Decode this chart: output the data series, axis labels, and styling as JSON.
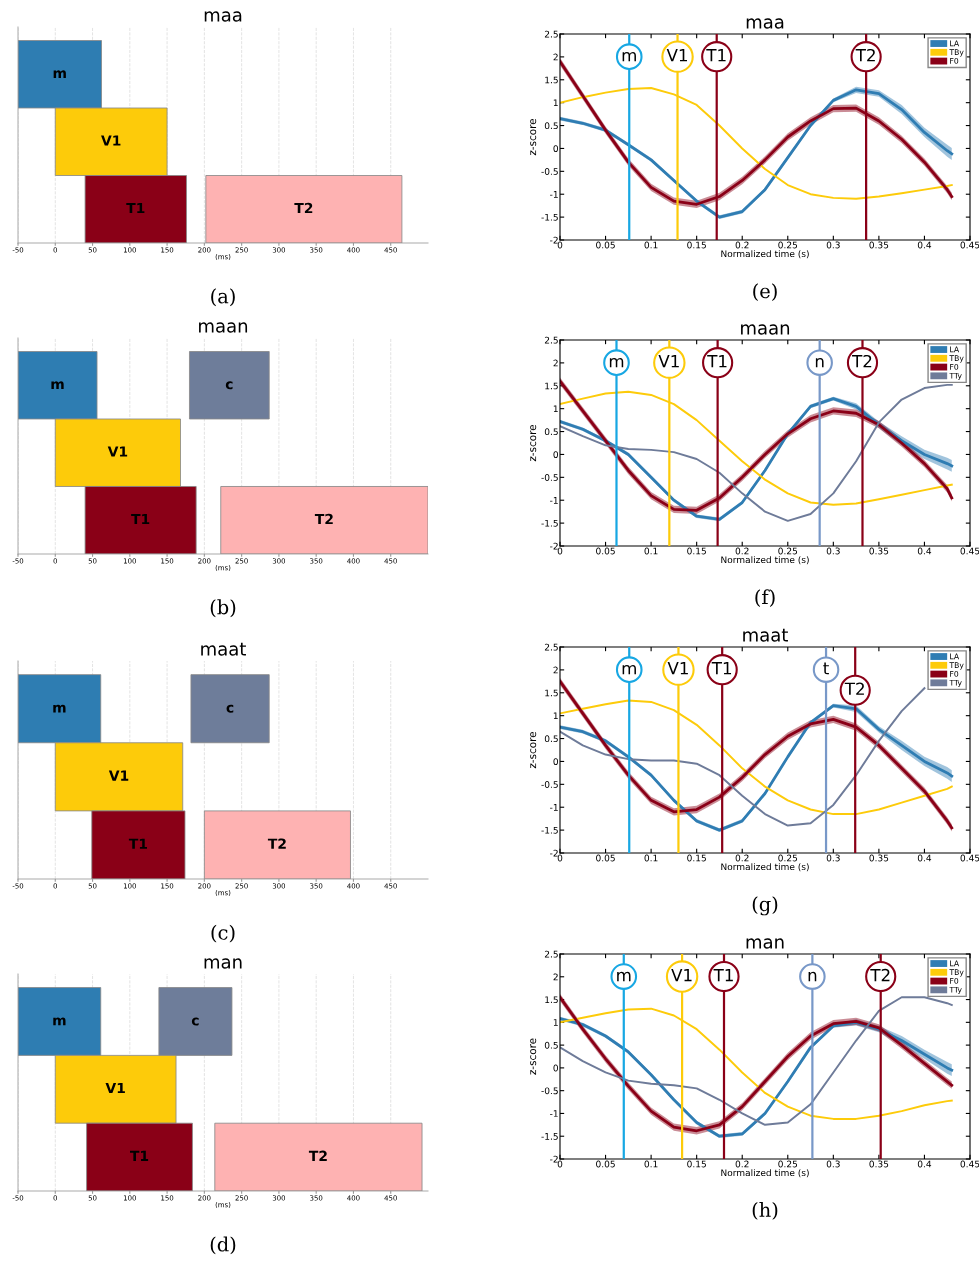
{
  "chart_data": [
    {
      "type": "bar",
      "orientation": "horizontal",
      "title": "maa",
      "xlabel": "(ms)",
      "categories": [
        null,
        null,
        null
      ],
      "xlim": [
        -50,
        500
      ],
      "xticks": [
        -50,
        0,
        50,
        100,
        150,
        200,
        250,
        300,
        350,
        400,
        450
      ],
      "grid": "x",
      "tick_labels": "x",
      "annotations": [
        "(a)"
      ],
      "series": [
        {
          "name": "m",
          "color": "#2e7db2",
          "values": [
            112,
            null,
            null
          ],
          "base": [
            -50,
            null,
            null
          ]
        },
        {
          "name": "V1",
          "color": "#fdcb0a",
          "values": [
            null,
            150,
            null
          ],
          "base": [
            null,
            0,
            null
          ]
        },
        {
          "name": "T1",
          "color": "#8a0017",
          "values": [
            null,
            null,
            136
          ],
          "base": [
            null,
            null,
            40
          ]
        },
        {
          "name": "T2",
          "color": "#feb2b2",
          "values": [
            null,
            null,
            263
          ],
          "base": [
            null,
            null,
            202
          ]
        }
      ]
    },
    {
      "type": "bar",
      "orientation": "horizontal",
      "title": "maan",
      "xlabel": "(ms)",
      "categories": [
        null,
        null,
        null
      ],
      "xlim": [
        -50,
        500
      ],
      "xticks": [
        -50,
        0,
        50,
        100,
        150,
        200,
        250,
        300,
        350,
        400,
        450
      ],
      "grid": "x",
      "tick_labels": "x",
      "annotations": [
        "(b)"
      ],
      "series": [
        {
          "name": "m",
          "color": "#2e7db2",
          "values": [
            106,
            null,
            null
          ],
          "base": [
            -50,
            null,
            null
          ]
        },
        {
          "name": "c",
          "color": "#6e7d9a",
          "values": [
            107,
            null,
            null
          ],
          "base": [
            180,
            null,
            null
          ]
        },
        {
          "name": "V1",
          "color": "#fdcb0a",
          "values": [
            null,
            168,
            null
          ],
          "base": [
            null,
            0,
            null
          ]
        },
        {
          "name": "T1",
          "color": "#8a0017",
          "values": [
            null,
            null,
            149
          ],
          "base": [
            null,
            null,
            40
          ]
        },
        {
          "name": "T2",
          "color": "#feb2b2",
          "values": [
            null,
            null,
            278
          ],
          "base": [
            null,
            null,
            222
          ]
        }
      ]
    },
    {
      "type": "bar",
      "orientation": "horizontal",
      "title": "maat",
      "xlabel": "(ms)",
      "categories": [
        null,
        null,
        null
      ],
      "xlim": [
        -50,
        500
      ],
      "xticks": [
        -50,
        0,
        50,
        100,
        150,
        200,
        250,
        300,
        350,
        400,
        450
      ],
      "grid": "x",
      "tick_labels": "x",
      "annotations": [
        "(c)"
      ],
      "series": [
        {
          "name": "m",
          "color": "#2e7db2",
          "values": [
            111,
            null,
            null
          ],
          "base": [
            -50,
            null,
            null
          ]
        },
        {
          "name": "c",
          "color": "#6e7d9a",
          "values": [
            105,
            null,
            null
          ],
          "base": [
            182,
            null,
            null
          ]
        },
        {
          "name": "V1",
          "color": "#fdcb0a",
          "values": [
            null,
            171,
            null
          ],
          "base": [
            null,
            0,
            null
          ]
        },
        {
          "name": "T1",
          "color": "#8a0017",
          "values": [
            null,
            null,
            125
          ],
          "base": [
            null,
            null,
            49
          ]
        },
        {
          "name": "T2",
          "color": "#feb2b2",
          "values": [
            null,
            null,
            196
          ],
          "base": [
            null,
            null,
            200
          ]
        }
      ]
    },
    {
      "type": "bar",
      "orientation": "horizontal",
      "title": "man",
      "xlabel": "(ms)",
      "categories": [
        null,
        null,
        null
      ],
      "xlim": [
        -50,
        500
      ],
      "xticks": [
        -50,
        0,
        50,
        100,
        150,
        200,
        250,
        300,
        350,
        400,
        450
      ],
      "grid": "x",
      "tick_labels": "x",
      "annotations": [
        "(d)"
      ],
      "series": [
        {
          "name": "m",
          "color": "#2e7db2",
          "values": [
            111,
            null,
            null
          ],
          "base": [
            -50,
            null,
            null
          ]
        },
        {
          "name": "c",
          "color": "#6e7d9a",
          "values": [
            98,
            null,
            null
          ],
          "base": [
            139,
            null,
            null
          ]
        },
        {
          "name": "V1",
          "color": "#fdcb0a",
          "values": [
            null,
            162,
            null
          ],
          "base": [
            null,
            0,
            null
          ]
        },
        {
          "name": "T1",
          "color": "#8a0017",
          "values": [
            null,
            null,
            142
          ],
          "base": [
            null,
            null,
            42
          ]
        },
        {
          "name": "T2",
          "color": "#feb2b2",
          "values": [
            null,
            null,
            278
          ],
          "base": [
            null,
            null,
            214
          ]
        }
      ]
    },
    {
      "type": "line",
      "title": "maa",
      "xlabel": "Normalized time (s)",
      "ylabel": "z-score",
      "x": [
        0,
        0.025,
        0.05,
        0.075,
        0.1,
        0.125,
        0.15,
        0.175,
        0.2,
        0.225,
        0.25,
        0.275,
        0.3,
        0.325,
        0.35,
        0.375,
        0.4,
        0.425,
        0.43
      ],
      "xlim": [
        0,
        0.45
      ],
      "ylim": [
        -2,
        2.5
      ],
      "xticks": [
        0,
        0.05,
        0.1,
        0.15,
        0.2,
        0.25,
        0.3,
        0.35,
        0.4,
        0.45
      ],
      "yticks": [
        -2,
        -1.5,
        -1,
        -0.5,
        0,
        0.5,
        1,
        1.5,
        2,
        2.5
      ],
      "legend": "top right",
      "annotations": [
        "(e)"
      ],
      "series": [
        {
          "name": "LA",
          "color": "#2f7db3",
          "values": [
            0.65,
            0.55,
            0.4,
            0.08,
            -0.25,
            -0.7,
            -1.15,
            -1.5,
            -1.38,
            -0.9,
            -0.2,
            0.5,
            1.05,
            1.28,
            1.2,
            0.85,
            0.35,
            -0.05,
            -0.12
          ],
          "lower": [
            0.61,
            0.51,
            0.36,
            0.04,
            -0.29,
            -0.74,
            -1.19,
            -1.54,
            -1.42,
            -0.94,
            -0.24,
            0.46,
            1.01,
            1.21,
            1.13,
            0.75,
            0.25,
            -0.18,
            -0.25
          ],
          "upper": [
            0.69,
            0.59,
            0.44,
            0.12,
            -0.21,
            -0.66,
            -1.11,
            -1.46,
            -1.34,
            -0.86,
            -0.16,
            0.54,
            1.09,
            1.35,
            1.27,
            0.95,
            0.45,
            0.08,
            0.01
          ]
        },
        {
          "name": "TBy",
          "color": "#fdcb0a",
          "values": [
            1.0,
            1.12,
            1.22,
            1.3,
            1.32,
            1.18,
            0.95,
            0.5,
            0.0,
            -0.45,
            -0.8,
            -1.0,
            -1.08,
            -1.1,
            -1.05,
            -0.98,
            -0.9,
            -0.82,
            -0.8
          ]
        },
        {
          "name": "F0",
          "color": "#8a0017",
          "values": [
            1.9,
            1.15,
            0.4,
            -0.3,
            -0.85,
            -1.15,
            -1.22,
            -1.05,
            -0.7,
            -0.25,
            0.25,
            0.6,
            0.87,
            0.88,
            0.6,
            0.2,
            -0.3,
            -0.9,
            -1.05
          ],
          "lower": [
            1.82,
            1.07,
            0.32,
            -0.38,
            -0.93,
            -1.23,
            -1.3,
            -1.13,
            -0.78,
            -0.33,
            0.17,
            0.52,
            0.79,
            0.8,
            0.52,
            0.12,
            -0.38,
            -0.98,
            -1.13
          ],
          "upper": [
            1.98,
            1.23,
            0.48,
            -0.22,
            -0.77,
            -1.07,
            -1.14,
            -0.97,
            -0.62,
            -0.17,
            0.33,
            0.68,
            0.95,
            0.96,
            0.68,
            0.28,
            -0.22,
            -0.82,
            -0.97
          ]
        }
      ],
      "ref_lines": [
        {
          "axis": "x",
          "value": 0.076,
          "label": "m",
          "color": "#17a7e3"
        },
        {
          "axis": "x",
          "value": 0.129,
          "label": "V1",
          "color": "#fdcb0a"
        },
        {
          "axis": "x",
          "value": 0.172,
          "label": "T1",
          "color": "#8a0017"
        },
        {
          "axis": "x",
          "value": 0.336,
          "label": "T2",
          "color": "#8a0017"
        }
      ]
    },
    {
      "type": "line",
      "title": "maan",
      "xlabel": "Normalized time (s)",
      "ylabel": "z-score",
      "x": [
        0,
        0.025,
        0.05,
        0.075,
        0.1,
        0.125,
        0.15,
        0.175,
        0.2,
        0.225,
        0.25,
        0.275,
        0.3,
        0.325,
        0.35,
        0.375,
        0.4,
        0.425,
        0.43
      ],
      "xlim": [
        0,
        0.45
      ],
      "ylim": [
        -2,
        2.5
      ],
      "xticks": [
        0,
        0.05,
        0.1,
        0.15,
        0.2,
        0.25,
        0.3,
        0.35,
        0.4,
        0.45
      ],
      "yticks": [
        -2,
        -1.5,
        -1,
        -0.5,
        0,
        0.5,
        1,
        1.5,
        2,
        2.5
      ],
      "legend": "top right",
      "annotations": [
        "(f)"
      ],
      "series": [
        {
          "name": "LA",
          "color": "#2f7db3",
          "values": [
            0.72,
            0.55,
            0.3,
            0.0,
            -0.5,
            -1.0,
            -1.35,
            -1.42,
            -1.05,
            -0.35,
            0.45,
            1.05,
            1.22,
            1.05,
            0.65,
            0.3,
            0.0,
            -0.2,
            -0.25
          ],
          "lower": [
            0.68,
            0.51,
            0.26,
            -0.04,
            -0.54,
            -1.04,
            -1.39,
            -1.46,
            -1.09,
            -0.39,
            0.41,
            1.01,
            1.18,
            0.98,
            0.58,
            0.2,
            -0.1,
            -0.33,
            -0.38
          ],
          "upper": [
            0.76,
            0.59,
            0.34,
            0.04,
            -0.46,
            -0.96,
            -1.31,
            -1.38,
            -1.01,
            -0.31,
            0.49,
            1.09,
            1.26,
            1.12,
            0.72,
            0.4,
            0.1,
            -0.07,
            -0.12
          ]
        },
        {
          "name": "TBy",
          "color": "#fdcb0a",
          "values": [
            1.1,
            1.22,
            1.33,
            1.37,
            1.3,
            1.1,
            0.75,
            0.3,
            -0.15,
            -0.55,
            -0.85,
            -1.05,
            -1.1,
            -1.07,
            -0.98,
            -0.88,
            -0.78,
            -0.68,
            -0.66
          ]
        },
        {
          "name": "F0",
          "color": "#8a0017",
          "values": [
            1.6,
            0.95,
            0.3,
            -0.35,
            -0.9,
            -1.2,
            -1.22,
            -0.95,
            -0.5,
            0.0,
            0.45,
            0.78,
            0.95,
            0.9,
            0.65,
            0.25,
            -0.2,
            -0.75,
            -0.95
          ],
          "lower": [
            1.52,
            0.87,
            0.22,
            -0.43,
            -0.98,
            -1.28,
            -1.3,
            -1.03,
            -0.58,
            -0.08,
            0.37,
            0.7,
            0.87,
            0.82,
            0.57,
            0.17,
            -0.28,
            -0.83,
            -1.03
          ],
          "upper": [
            1.68,
            1.03,
            0.38,
            -0.27,
            -0.82,
            -1.12,
            -1.14,
            -0.87,
            -0.42,
            0.08,
            0.53,
            0.86,
            1.03,
            0.98,
            0.73,
            0.33,
            -0.12,
            -0.67,
            -0.87
          ]
        },
        {
          "name": "TTy",
          "color": "#6e7b99",
          "values": [
            0.62,
            0.4,
            0.2,
            0.12,
            0.1,
            0.05,
            -0.1,
            -0.4,
            -0.85,
            -1.25,
            -1.45,
            -1.3,
            -0.85,
            -0.15,
            0.7,
            1.2,
            1.45,
            1.52,
            1.52
          ]
        }
      ],
      "ref_lines": [
        {
          "axis": "x",
          "value": 0.062,
          "label": "m",
          "color": "#17a7e3"
        },
        {
          "axis": "x",
          "value": 0.12,
          "label": "V1",
          "color": "#fdcb0a"
        },
        {
          "axis": "x",
          "value": 0.173,
          "label": "T1",
          "color": "#8a0017"
        },
        {
          "axis": "x",
          "value": 0.285,
          "label": "n",
          "color": "#7898c8"
        },
        {
          "axis": "x",
          "value": 0.332,
          "label": "T2",
          "color": "#8a0017"
        }
      ]
    },
    {
      "type": "line",
      "title": "maat",
      "xlabel": "Normalized time (s)",
      "ylabel": "z-score",
      "x": [
        0,
        0.025,
        0.05,
        0.075,
        0.1,
        0.125,
        0.15,
        0.175,
        0.2,
        0.225,
        0.25,
        0.275,
        0.3,
        0.325,
        0.35,
        0.375,
        0.4,
        0.425,
        0.43
      ],
      "xlim": [
        0,
        0.45
      ],
      "ylim": [
        -2,
        2.5
      ],
      "xticks": [
        0,
        0.05,
        0.1,
        0.15,
        0.2,
        0.25,
        0.3,
        0.35,
        0.4,
        0.45
      ],
      "yticks": [
        -2,
        -1.5,
        -1,
        -0.5,
        0,
        0.5,
        1,
        1.5,
        2,
        2.5
      ],
      "legend": "top right",
      "annotations": [
        "(g)"
      ],
      "series": [
        {
          "name": "LA",
          "color": "#2f7db3",
          "values": [
            0.75,
            0.65,
            0.45,
            0.1,
            -0.3,
            -0.85,
            -1.3,
            -1.5,
            -1.3,
            -0.7,
            0.1,
            0.85,
            1.22,
            1.15,
            0.7,
            0.35,
            0.0,
            -0.25,
            -0.32
          ],
          "lower": [
            0.71,
            0.61,
            0.41,
            0.06,
            -0.34,
            -0.89,
            -1.34,
            -1.54,
            -1.34,
            -0.74,
            0.06,
            0.81,
            1.18,
            1.08,
            0.63,
            0.25,
            -0.1,
            -0.38,
            -0.45
          ],
          "upper": [
            0.79,
            0.69,
            0.49,
            0.14,
            -0.26,
            -0.81,
            -1.26,
            -1.46,
            -1.26,
            -0.66,
            0.14,
            0.89,
            1.26,
            1.22,
            0.77,
            0.45,
            0.1,
            -0.12,
            -0.19
          ]
        },
        {
          "name": "TBy",
          "color": "#fdcb0a",
          "values": [
            1.05,
            1.15,
            1.25,
            1.33,
            1.3,
            1.12,
            0.8,
            0.35,
            -0.15,
            -0.55,
            -0.85,
            -1.05,
            -1.15,
            -1.15,
            -1.05,
            -0.9,
            -0.75,
            -0.6,
            -0.55
          ]
        },
        {
          "name": "F0",
          "color": "#8a0017",
          "values": [
            1.75,
            1.05,
            0.35,
            -0.3,
            -0.85,
            -1.1,
            -1.05,
            -0.78,
            -0.35,
            0.15,
            0.55,
            0.82,
            0.92,
            0.75,
            0.35,
            -0.15,
            -0.65,
            -1.3,
            -1.45
          ],
          "lower": [
            1.67,
            0.97,
            0.27,
            -0.38,
            -0.93,
            -1.18,
            -1.13,
            -0.86,
            -0.43,
            0.07,
            0.47,
            0.74,
            0.84,
            0.67,
            0.27,
            -0.23,
            -0.73,
            -1.38,
            -1.53
          ],
          "upper": [
            1.83,
            1.13,
            0.43,
            -0.22,
            -0.77,
            -1.02,
            -0.97,
            -0.7,
            -0.27,
            0.23,
            0.63,
            0.9,
            1.0,
            0.83,
            0.43,
            -0.07,
            -0.57,
            -1.22,
            -1.37
          ]
        },
        {
          "name": "TTy",
          "color": "#6e7b99",
          "values": [
            0.65,
            0.35,
            0.15,
            0.05,
            0.02,
            0.02,
            -0.05,
            -0.3,
            -0.75,
            -1.15,
            -1.4,
            -1.35,
            -0.95,
            -0.3,
            0.45,
            1.1,
            1.6,
            null,
            null
          ]
        }
      ],
      "ref_lines": [
        {
          "axis": "x",
          "value": 0.076,
          "label": "m",
          "color": "#17a7e3"
        },
        {
          "axis": "x",
          "value": 0.13,
          "label": "V1",
          "color": "#fdcb0a"
        },
        {
          "axis": "x",
          "value": 0.178,
          "label": "T1",
          "color": "#8a0017"
        },
        {
          "axis": "x",
          "value": 0.292,
          "label": "t",
          "color": "#7898c8"
        },
        {
          "axis": "x",
          "value": 0.324,
          "label": "T2",
          "color": "#8a0017"
        }
      ]
    },
    {
      "type": "line",
      "title": "man",
      "xlabel": "Normalized time (s)",
      "ylabel": "z-score",
      "x": [
        0,
        0.025,
        0.05,
        0.075,
        0.1,
        0.125,
        0.15,
        0.175,
        0.2,
        0.225,
        0.25,
        0.275,
        0.3,
        0.325,
        0.35,
        0.375,
        0.4,
        0.425,
        0.43
      ],
      "xlim": [
        0,
        0.45
      ],
      "ylim": [
        -2,
        2.5
      ],
      "xticks": [
        0,
        0.05,
        0.1,
        0.15,
        0.2,
        0.25,
        0.3,
        0.35,
        0.4,
        0.45
      ],
      "yticks": [
        -2,
        -1.5,
        -1,
        -0.5,
        0,
        0.5,
        1,
        1.5,
        2,
        2.5
      ],
      "legend": "top right",
      "annotations": [
        "(h)"
      ],
      "series": [
        {
          "name": "LA",
          "color": "#2f7db3",
          "values": [
            1.08,
            0.95,
            0.7,
            0.35,
            -0.15,
            -0.7,
            -1.2,
            -1.5,
            -1.45,
            -1.0,
            -0.3,
            0.45,
            0.92,
            1.0,
            0.85,
            0.6,
            0.3,
            0.0,
            -0.05
          ],
          "lower": [
            1.04,
            0.91,
            0.66,
            0.31,
            -0.19,
            -0.74,
            -1.24,
            -1.54,
            -1.49,
            -1.04,
            -0.34,
            0.41,
            0.88,
            0.93,
            0.78,
            0.5,
            0.2,
            -0.13,
            -0.18
          ],
          "upper": [
            1.12,
            0.99,
            0.74,
            0.39,
            -0.11,
            -0.66,
            -1.16,
            -1.46,
            -1.41,
            -0.96,
            -0.26,
            0.49,
            0.96,
            1.07,
            0.92,
            0.7,
            0.4,
            0.13,
            0.08
          ]
        },
        {
          "name": "TBy",
          "color": "#fdcb0a",
          "values": [
            1.0,
            1.1,
            1.2,
            1.28,
            1.3,
            1.15,
            0.85,
            0.4,
            -0.1,
            -0.55,
            -0.85,
            -1.05,
            -1.12,
            -1.12,
            -1.05,
            -0.95,
            -0.82,
            -0.73,
            -0.72
          ]
        },
        {
          "name": "F0",
          "color": "#8a0017",
          "values": [
            1.55,
            0.85,
            0.2,
            -0.4,
            -0.95,
            -1.3,
            -1.38,
            -1.25,
            -0.85,
            -0.3,
            0.25,
            0.7,
            0.97,
            1.02,
            0.88,
            0.5,
            0.1,
            -0.3,
            -0.38
          ],
          "lower": [
            1.47,
            0.77,
            0.12,
            -0.48,
            -1.03,
            -1.38,
            -1.46,
            -1.33,
            -0.93,
            -0.38,
            0.17,
            0.62,
            0.89,
            0.94,
            0.8,
            0.42,
            0.02,
            -0.38,
            -0.46
          ],
          "upper": [
            1.63,
            0.93,
            0.28,
            -0.32,
            -0.87,
            -1.22,
            -1.3,
            -1.17,
            -0.77,
            -0.22,
            0.33,
            0.78,
            1.05,
            1.1,
            0.96,
            0.58,
            0.18,
            -0.22,
            -0.3
          ]
        },
        {
          "name": "TTy",
          "color": "#6e7b99",
          "values": [
            0.45,
            0.15,
            -0.1,
            -0.28,
            -0.35,
            -0.38,
            -0.45,
            -0.7,
            -1.0,
            -1.25,
            -1.2,
            -0.8,
            -0.1,
            0.6,
            1.25,
            1.55,
            1.55,
            1.42,
            1.38
          ]
        }
      ],
      "ref_lines": [
        {
          "axis": "x",
          "value": 0.07,
          "label": "m",
          "color": "#17a7e3"
        },
        {
          "axis": "x",
          "value": 0.134,
          "label": "V1",
          "color": "#fdcb0a"
        },
        {
          "axis": "x",
          "value": 0.18,
          "label": "T1",
          "color": "#8a0017"
        },
        {
          "axis": "x",
          "value": 0.277,
          "label": "n",
          "color": "#7898c8"
        },
        {
          "axis": "x",
          "value": 0.352,
          "label": "T2",
          "color": "#8a0017"
        }
      ]
    }
  ]
}
